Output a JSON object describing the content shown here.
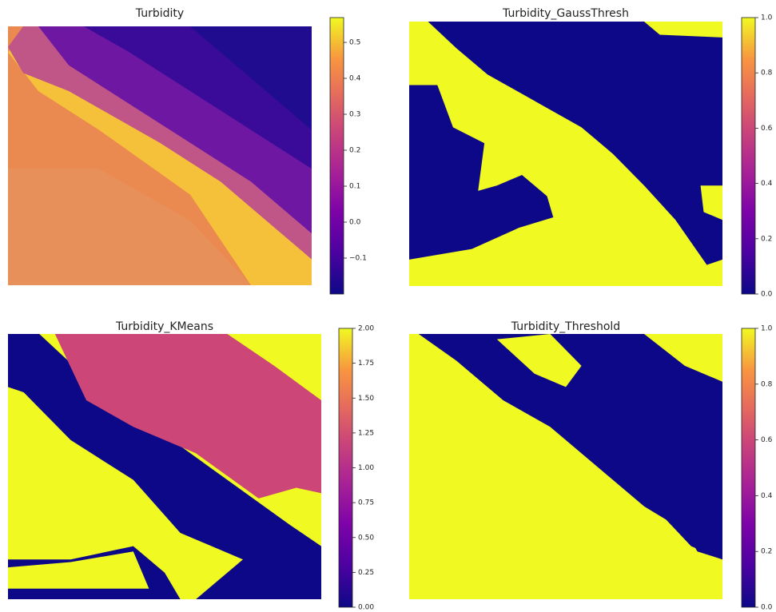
{
  "chart_data": [
    {
      "type": "heatmap",
      "title": "Turbidity",
      "colormap": "plasma",
      "clim": [
        -0.2,
        0.569
      ],
      "cticks": [
        {
          "value": -0.1,
          "label": "−0.1"
        },
        {
          "value": 0,
          "label": "0.0"
        },
        0.1,
        0.2,
        0.3,
        0.4,
        0.5
      ]
    },
    {
      "type": "heatmap",
      "title": "Turbidity_GaussThresh",
      "colormap": "plasma",
      "clim": [
        0,
        1
      ],
      "cticks": [
        {
          "value": 0,
          "label": "0.0"
        },
        0.2,
        0.4,
        0.6,
        0.8,
        {
          "value": 1,
          "label": "1.0"
        }
      ]
    },
    {
      "type": "heatmap",
      "title": "Turbidity_KMeans",
      "colormap": "plasma",
      "clim": [
        0,
        2
      ],
      "cticks": [
        {
          "value": 0,
          "label": "0.00"
        },
        {
          "value": 0.25,
          "label": "0.25"
        },
        {
          "value": 0.5,
          "label": "0.50"
        },
        {
          "value": 0.75,
          "label": "0.75"
        },
        {
          "value": 1,
          "label": "1.00"
        },
        {
          "value": 1.25,
          "label": "1.25"
        },
        {
          "value": 1.5,
          "label": "1.50"
        },
        {
          "value": 1.75,
          "label": "1.75"
        },
        {
          "value": 2,
          "label": "2.00"
        }
      ]
    },
    {
      "type": "heatmap",
      "title": "Turbidity_Threshold",
      "colormap": "plasma",
      "clim": [
        0,
        1
      ],
      "cticks": [
        {
          "value": 0,
          "label": "0.0"
        },
        0.2,
        0.4,
        0.6,
        0.8,
        {
          "value": 1,
          "label": "1.0"
        }
      ]
    }
  ]
}
